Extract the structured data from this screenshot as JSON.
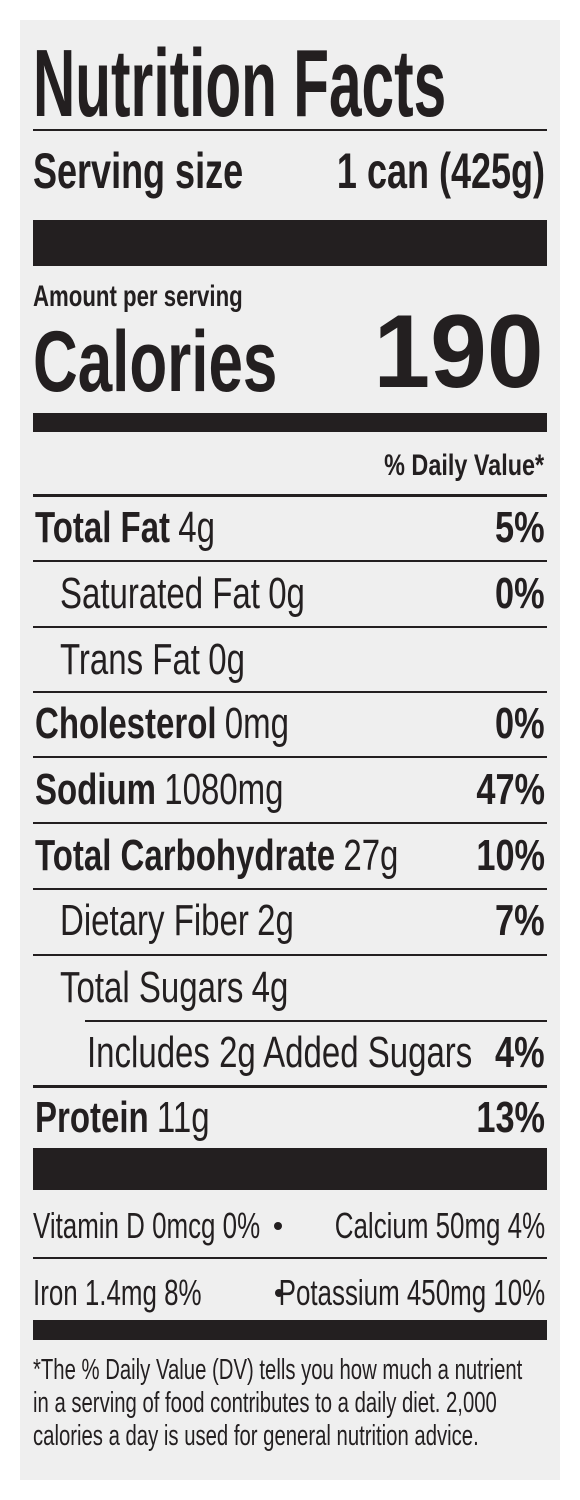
{
  "title": "Nutrition Facts",
  "serving": {
    "label": "Serving size",
    "value": "1 can (425g)"
  },
  "calories": {
    "caption": "Amount per serving",
    "label": "Calories",
    "value": "190"
  },
  "dv_header": "% Daily Value*",
  "rows": [
    {
      "name": "Total Fat",
      "amount": "4g",
      "dv": "5%",
      "bold": true,
      "indent": 0
    },
    {
      "name": "Saturated Fat",
      "amount": "0g",
      "dv": "0%",
      "bold": false,
      "indent": 1
    },
    {
      "name": "Trans Fat",
      "amount": "0g",
      "bold": false,
      "indent": 1
    },
    {
      "name": "Cholesterol",
      "amount": "0mg",
      "dv": "0%",
      "bold": true,
      "indent": 0
    },
    {
      "name": "Sodium",
      "amount": "1080mg",
      "dv": "47%",
      "bold": true,
      "indent": 0
    },
    {
      "name": "Total Carbohydrate",
      "amount": "27g",
      "dv": "10%",
      "bold": true,
      "indent": 0
    },
    {
      "name": "Dietary Fiber",
      "amount": "2g",
      "dv": "7%",
      "bold": false,
      "indent": 1
    },
    {
      "name": "Total Sugars",
      "amount": "4g",
      "bold": false,
      "indent": 1
    },
    {
      "name": "Includes 2g Added Sugars",
      "dv": "4%",
      "bold": false,
      "indent": 2
    },
    {
      "name": "Protein",
      "amount": "11g",
      "dv": "13%",
      "bold": true,
      "indent": 0
    }
  ],
  "micros": [
    [
      "Vitamin D 0mcg 0%",
      "Calcium 50mg 4%"
    ],
    [
      "Iron 1.4mg 8%",
      "Potassium 450mg 10%"
    ]
  ],
  "footnote": [
    "*The % Daily Value (DV) tells you how much a nutrient",
    "in a serving of food contributes to a daily diet. 2,000",
    "calories a day is used for general nutrition advice."
  ]
}
